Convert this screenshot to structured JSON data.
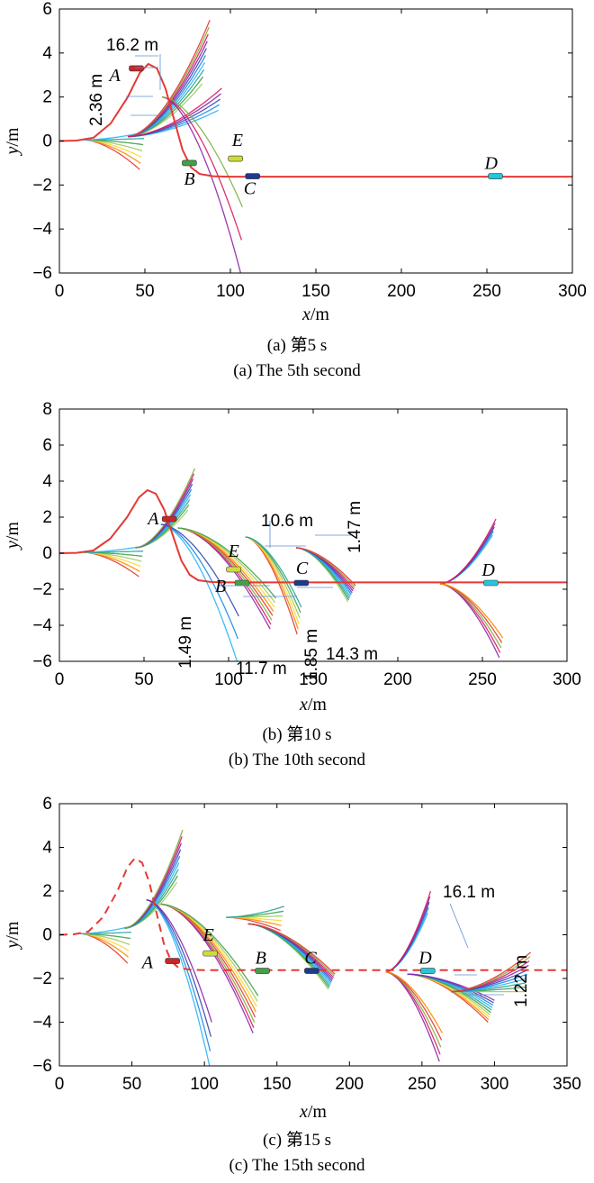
{
  "chart_data": [
    {
      "type": "line",
      "panel": "a",
      "caption_cn": "(a) 第5 s",
      "caption_en": "(a) The 5th second",
      "xlabel": "x/m",
      "ylabel": "y/m",
      "xlim": [
        0,
        300
      ],
      "ylim": [
        -6,
        6
      ],
      "xticks": [
        0,
        50,
        100,
        150,
        200,
        250,
        300
      ],
      "yticks": [
        -6,
        -4,
        -2,
        0,
        2,
        4,
        6
      ],
      "grid": false,
      "reference_path": {
        "style": "solid",
        "color": "#e53935",
        "x": [
          0,
          10,
          20,
          30,
          40,
          47,
          52,
          57,
          62,
          67,
          72,
          77,
          82,
          90,
          100,
          110,
          150,
          200,
          250,
          300
        ],
        "y": [
          0,
          0.02,
          0.15,
          0.8,
          2.0,
          3.1,
          3.5,
          3.3,
          2.4,
          1.0,
          -0.4,
          -1.2,
          -1.5,
          -1.6,
          -1.62,
          -1.62,
          -1.62,
          -1.62,
          -1.62,
          -1.62
        ]
      },
      "vehicles": [
        {
          "label": "A",
          "x": 45,
          "y": 3.3,
          "color": "#c62828"
        },
        {
          "label": "B",
          "x": 76,
          "y": -1.0,
          "color": "#43a047"
        },
        {
          "label": "E",
          "x": 103,
          "y": -0.8,
          "color": "#cddc39"
        },
        {
          "label": "C",
          "x": 113,
          "y": -1.6,
          "color": "#1e3a8a"
        },
        {
          "label": "D",
          "x": 255,
          "y": -1.6,
          "color": "#26c6da"
        }
      ],
      "trajectory_fans": [
        {
          "x0": 14,
          "y0": 0.05,
          "x1": 50,
          "ymin": -1.3,
          "ymax": 0.4,
          "n": 7
        },
        {
          "x0": 40,
          "y0": 0.2,
          "x1": 88,
          "ymin": 2.6,
          "ymax": 5.5,
          "n": 10
        },
        {
          "x0": 40,
          "y0": 0.2,
          "x1": 95,
          "ymin": 1.4,
          "ymax": 2.4,
          "n": 5
        },
        {
          "x0": 60,
          "y0": 2.0,
          "x1": 107,
          "ymin": -6.0,
          "ymax": -3.0,
          "n": 3
        }
      ],
      "annotations": [
        {
          "text": "16.2 m"
        },
        {
          "text": "2.36 m"
        }
      ]
    },
    {
      "type": "line",
      "panel": "b",
      "caption_cn": "(b) 第10 s",
      "caption_en": "(b) The 10th second",
      "xlabel": "x/m",
      "ylabel": "y/m",
      "xlim": [
        0,
        300
      ],
      "ylim": [
        -6,
        8
      ],
      "xticks": [
        0,
        50,
        100,
        150,
        200,
        250,
        300
      ],
      "yticks": [
        -6,
        -4,
        -2,
        0,
        2,
        4,
        6,
        8
      ],
      "grid": false,
      "reference_path": {
        "style": "solid",
        "color": "#e53935",
        "x": [
          0,
          10,
          20,
          30,
          40,
          47,
          52,
          57,
          62,
          67,
          72,
          77,
          82,
          90,
          100,
          110,
          150,
          200,
          250,
          300
        ],
        "y": [
          0,
          0.02,
          0.15,
          0.8,
          2.0,
          3.1,
          3.5,
          3.3,
          2.4,
          1.0,
          -0.4,
          -1.2,
          -1.5,
          -1.6,
          -1.62,
          -1.62,
          -1.62,
          -1.62,
          -1.62,
          -1.62
        ]
      },
      "vehicles": [
        {
          "label": "A",
          "x": 65,
          "y": 1.9,
          "color": "#c62828"
        },
        {
          "label": "E",
          "x": 103,
          "y": -0.9,
          "color": "#cddc39"
        },
        {
          "label": "B",
          "x": 108,
          "y": -1.65,
          "color": "#43a047"
        },
        {
          "label": "C",
          "x": 143,
          "y": -1.65,
          "color": "#1e3a8a"
        },
        {
          "label": "D",
          "x": 255,
          "y": -1.65,
          "color": "#26c6da"
        }
      ],
      "trajectory_fans": [
        {
          "x0": 14,
          "y0": 0.05,
          "x1": 50,
          "ymin": -1.3,
          "ymax": 0.4,
          "n": 7
        },
        {
          "x0": 45,
          "y0": 0.3,
          "x1": 80,
          "ymin": 2.4,
          "ymax": 4.7,
          "n": 9
        },
        {
          "x0": 60,
          "y0": 1.6,
          "x1": 106,
          "ymin": -6.0,
          "ymax": -3.5,
          "n": 3
        },
        {
          "x0": 70,
          "y0": 1.4,
          "x1": 128,
          "ymin": -4.2,
          "ymax": -2.5,
          "n": 8
        },
        {
          "x0": 110,
          "y0": 0.9,
          "x1": 143,
          "ymin": -4.5,
          "ymax": -3.0,
          "n": 6
        },
        {
          "x0": 140,
          "y0": 0.3,
          "x1": 175,
          "ymin": -2.7,
          "ymax": -1.8,
          "n": 10
        },
        {
          "x0": 225,
          "y0": -1.7,
          "x1": 258,
          "ymin": 1.0,
          "ymax": 1.9,
          "n": 5
        },
        {
          "x0": 225,
          "y0": -1.7,
          "x1": 262,
          "ymin": -5.8,
          "ymax": -4.7,
          "n": 5
        }
      ],
      "annotations": [
        {
          "text": "10.6 m"
        },
        {
          "text": "1.47 m"
        },
        {
          "text": "1.49 m"
        },
        {
          "text": "11.7 m"
        },
        {
          "text": "1.85 m"
        },
        {
          "text": "14.3 m"
        }
      ]
    },
    {
      "type": "line",
      "panel": "c",
      "caption_cn": "(c) 第15 s",
      "caption_en": "(c) The 15th second",
      "xlabel": "x/m",
      "ylabel": "y/m",
      "xlim": [
        0,
        350
      ],
      "ylim": [
        -6,
        6
      ],
      "xticks": [
        0,
        50,
        100,
        150,
        200,
        250,
        300,
        350
      ],
      "yticks": [
        -6,
        -4,
        -2,
        0,
        2,
        4,
        6
      ],
      "grid": false,
      "reference_path": {
        "style": "dashed",
        "color": "#e53935",
        "x": [
          0,
          10,
          20,
          30,
          40,
          47,
          52,
          57,
          62,
          67,
          72,
          77,
          82,
          90,
          100,
          110,
          150,
          200,
          250,
          300,
          350
        ],
        "y": [
          0,
          0.02,
          0.15,
          0.8,
          2.0,
          3.1,
          3.5,
          3.3,
          2.4,
          1.0,
          -0.4,
          -1.2,
          -1.5,
          -1.6,
          -1.62,
          -1.62,
          -1.62,
          -1.62,
          -1.62,
          -1.62,
          -1.62
        ]
      },
      "vehicles": [
        {
          "label": "A",
          "x": 78,
          "y": -1.2,
          "color": "#c62828"
        },
        {
          "label": "E",
          "x": 104,
          "y": -0.85,
          "color": "#cddc39"
        },
        {
          "label": "B",
          "x": 140,
          "y": -1.65,
          "color": "#43a047"
        },
        {
          "label": "C",
          "x": 174,
          "y": -1.65,
          "color": "#1e3a8a"
        },
        {
          "label": "D",
          "x": 254,
          "y": -1.65,
          "color": "#26c6da"
        }
      ],
      "trajectory_fans": [
        {
          "x0": 14,
          "y0": 0.05,
          "x1": 50,
          "ymin": -1.3,
          "ymax": 0.4,
          "n": 7
        },
        {
          "x0": 45,
          "y0": 0.3,
          "x1": 85,
          "ymin": 2.4,
          "ymax": 4.8,
          "n": 9
        },
        {
          "x0": 60,
          "y0": 1.6,
          "x1": 105,
          "ymin": -6.0,
          "ymax": -4.0,
          "n": 4
        },
        {
          "x0": 70,
          "y0": 1.4,
          "x1": 137,
          "ymin": -4.5,
          "ymax": -2.8,
          "n": 8
        },
        {
          "x0": 115,
          "y0": 0.8,
          "x1": 155,
          "ymin": 0.2,
          "ymax": 1.3,
          "n": 6
        },
        {
          "x0": 130,
          "y0": 0.5,
          "x1": 190,
          "ymin": -2.5,
          "ymax": -1.8,
          "n": 10
        },
        {
          "x0": 225,
          "y0": -1.7,
          "x1": 256,
          "ymin": 1.0,
          "ymax": 2.0,
          "n": 5
        },
        {
          "x0": 225,
          "y0": -1.7,
          "x1": 264,
          "ymin": -5.8,
          "ymax": -4.5,
          "n": 5
        },
        {
          "x0": 240,
          "y0": -1.8,
          "x1": 300,
          "ymin": -4.0,
          "ymax": -3.0,
          "n": 10
        },
        {
          "x0": 270,
          "y0": -2.6,
          "x1": 325,
          "ymin": -2.6,
          "ymax": -0.8,
          "n": 10
        }
      ],
      "annotations": [
        {
          "text": "16.1 m"
        },
        {
          "text": "1.22 m"
        }
      ]
    }
  ]
}
